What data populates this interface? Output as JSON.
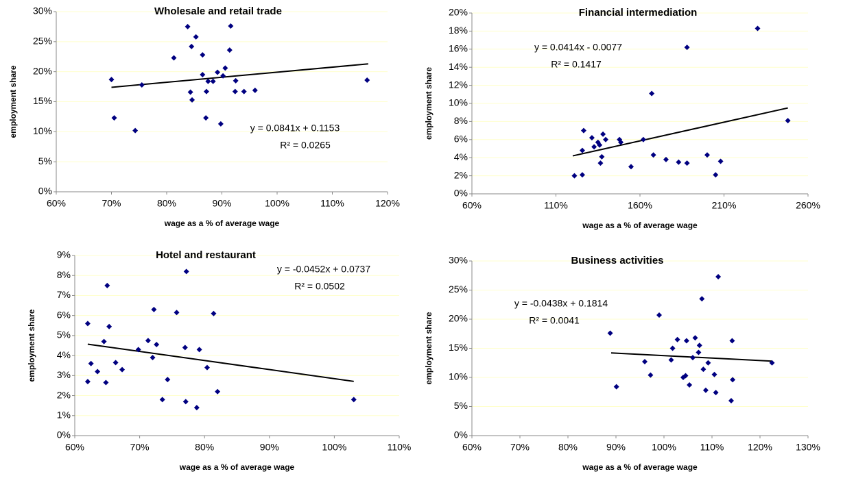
{
  "chart_data": [
    {
      "type": "scatter",
      "title": "Wholesale and retail trade",
      "x_label": "wage as a % of average wage",
      "y_label": "employment share",
      "x": [
        70,
        70.5,
        74.3,
        75.5,
        81.3,
        83.8,
        84.5,
        84.3,
        84.6,
        85.3,
        86.5,
        86.5,
        87.2,
        87.1,
        87.5,
        88.4,
        89.2,
        89.8,
        90.2,
        90.6,
        91.4,
        91.6,
        92.4,
        92.5,
        94,
        96,
        116.3
      ],
      "values": [
        18.7,
        12.3,
        10.2,
        17.8,
        22.3,
        27.5,
        24.2,
        16.6,
        15.3,
        25.8,
        22.8,
        19.5,
        16.7,
        12.3,
        18.4,
        18.4,
        19.9,
        11.3,
        19.3,
        20.6,
        23.6,
        27.6,
        16.7,
        18.5,
        16.7,
        16.9,
        18.6
      ],
      "color": "#000080",
      "marker": "diamond",
      "trendline": {
        "x": [
          70,
          116.5
        ],
        "values": [
          17.4,
          21.3
        ],
        "color": "#000000"
      },
      "equation": "y = 0.0841x + 0.1153",
      "r_squared": "R² = 0.0265",
      "xlim": [
        60,
        120
      ],
      "ylim": [
        0,
        30
      ],
      "grid": true,
      "grid_color": "#ffffcc",
      "xticks": [
        {
          "value": 60,
          "label": "60%"
        },
        {
          "value": 70,
          "label": "70%"
        },
        {
          "value": 80,
          "label": "80%"
        },
        {
          "value": 90,
          "label": "90%"
        },
        {
          "value": 100,
          "label": "100%"
        },
        {
          "value": 110,
          "label": "110%"
        },
        {
          "value": 120,
          "label": "120%"
        }
      ],
      "yticks": [
        {
          "value": 0,
          "label": "0%"
        },
        {
          "value": 5,
          "label": "5%"
        },
        {
          "value": 10,
          "label": "10%"
        },
        {
          "value": 15,
          "label": "15%"
        },
        {
          "value": 20,
          "label": "20%"
        },
        {
          "value": 25,
          "label": "25%"
        },
        {
          "value": 30,
          "label": "30%"
        }
      ]
    },
    {
      "type": "scatter",
      "title": "Financial intermediation",
      "x_label": "wage as a % of average wage",
      "y_label": "employment share",
      "x": [
        121,
        125.7,
        125.7,
        126.5,
        131.4,
        132.7,
        135,
        136,
        136.5,
        137.3,
        138,
        139.6,
        147.8,
        148.6,
        154.7,
        162,
        167,
        168,
        175.5,
        183,
        188,
        188,
        200,
        205,
        208,
        230,
        248
      ],
      "values": [
        2.0,
        2.1,
        4.8,
        7.0,
        6.2,
        5.2,
        5.7,
        5.4,
        3.4,
        4.1,
        6.6,
        6.0,
        6.0,
        5.7,
        3.0,
        6.0,
        11.1,
        4.3,
        3.8,
        3.5,
        16.2,
        3.4,
        4.3,
        2.1,
        3.6,
        18.3,
        8.1
      ],
      "color": "#000080",
      "marker": "diamond",
      "trendline": {
        "x": [
          120,
          248
        ],
        "values": [
          4.2,
          9.5
        ],
        "color": "#000000"
      },
      "equation": "y = 0.0414x - 0.0077",
      "r_squared": "R² = 0.1417",
      "xlim": [
        60,
        260
      ],
      "ylim": [
        0,
        20
      ],
      "grid": true,
      "grid_color": "#ffffcc",
      "xticks": [
        {
          "value": 60,
          "label": "60%"
        },
        {
          "value": 110,
          "label": "110%"
        },
        {
          "value": 160,
          "label": "160%"
        },
        {
          "value": 210,
          "label": "210%"
        },
        {
          "value": 260,
          "label": "260%"
        }
      ],
      "yticks": [
        {
          "value": 0,
          "label": "0%"
        },
        {
          "value": 2,
          "label": "2%"
        },
        {
          "value": 4,
          "label": "4%"
        },
        {
          "value": 6,
          "label": "6%"
        },
        {
          "value": 8,
          "label": "8%"
        },
        {
          "value": 10,
          "label": "10%"
        },
        {
          "value": 12,
          "label": "12%"
        },
        {
          "value": 14,
          "label": "14%"
        },
        {
          "value": 16,
          "label": "16%"
        },
        {
          "value": 18,
          "label": "18%"
        },
        {
          "value": 20,
          "label": "20%"
        }
      ]
    },
    {
      "type": "scatter",
      "title": "Hotel and restaurant",
      "x_label": "wage as a % of average wage",
      "y_label": "employment share",
      "x": [
        62,
        62.5,
        62,
        63.5,
        64.5,
        64.8,
        65,
        65.3,
        66.3,
        67.3,
        69.8,
        71.3,
        72,
        72.2,
        72.6,
        73.5,
        74.3,
        75.7,
        77,
        77.2,
        77.1,
        78.8,
        79.2,
        80.4,
        81.4,
        82,
        103
      ],
      "values": [
        5.6,
        3.6,
        2.7,
        3.2,
        4.7,
        2.65,
        7.5,
        5.45,
        3.65,
        3.3,
        4.3,
        4.75,
        3.9,
        6.3,
        4.55,
        1.8,
        2.8,
        6.15,
        4.4,
        8.2,
        1.7,
        1.4,
        4.3,
        3.4,
        6.1,
        2.2,
        1.8
      ],
      "color": "#000080",
      "marker": "diamond",
      "trendline": {
        "x": [
          62,
          103
        ],
        "values": [
          4.57,
          2.71
        ],
        "color": "#000000"
      },
      "equation": "y = -0.0452x + 0.0737",
      "r_squared": "R² = 0.0502",
      "xlim": [
        60,
        110
      ],
      "ylim": [
        0,
        9
      ],
      "grid": true,
      "grid_color": "#ffffcc",
      "xticks": [
        {
          "value": 60,
          "label": "60%"
        },
        {
          "value": 70,
          "label": "70%"
        },
        {
          "value": 80,
          "label": "80%"
        },
        {
          "value": 90,
          "label": "90%"
        },
        {
          "value": 100,
          "label": "100%"
        },
        {
          "value": 110,
          "label": "110%"
        }
      ],
      "yticks": [
        {
          "value": 0,
          "label": "0%"
        },
        {
          "value": 1,
          "label": "1%"
        },
        {
          "value": 2,
          "label": "2%"
        },
        {
          "value": 3,
          "label": "3%"
        },
        {
          "value": 4,
          "label": "4%"
        },
        {
          "value": 5,
          "label": "5%"
        },
        {
          "value": 6,
          "label": "6%"
        },
        {
          "value": 7,
          "label": "7%"
        },
        {
          "value": 8,
          "label": "8%"
        },
        {
          "value": 9,
          "label": "9%"
        }
      ]
    },
    {
      "type": "scatter",
      "title": "Business activities",
      "x_label": "wage as a % of average wage",
      "y_label": "employment share",
      "x": [
        88.8,
        90.1,
        96,
        97.2,
        99,
        101.5,
        101.8,
        102.8,
        104,
        104.5,
        104.7,
        105.3,
        106,
        106.5,
        107.2,
        107.4,
        107.9,
        108.2,
        108.7,
        109.2,
        110.5,
        110.8,
        111.3,
        114.2,
        114.3,
        114,
        122.5
      ],
      "values": [
        17.6,
        8.4,
        12.7,
        10.4,
        20.7,
        13,
        15,
        16.5,
        10,
        10.3,
        16.3,
        8.7,
        13.4,
        16.8,
        14.3,
        15.5,
        23.5,
        11.4,
        7.8,
        12.5,
        10.5,
        7.4,
        27.3,
        16.3,
        9.6,
        6,
        12.5
      ],
      "color": "#000080",
      "marker": "diamond",
      "trendline": {
        "x": [
          89,
          122.5
        ],
        "values": [
          14.2,
          12.8
        ],
        "color": "#000000"
      },
      "equation": "y = -0.0438x + 0.1814",
      "r_squared": "R² = 0.0041",
      "xlim": [
        60,
        130
      ],
      "ylim": [
        0,
        30
      ],
      "grid": true,
      "grid_color": "#ffffcc",
      "xticks": [
        {
          "value": 60,
          "label": "60%"
        },
        {
          "value": 70,
          "label": "70%"
        },
        {
          "value": 80,
          "label": "80%"
        },
        {
          "value": 90,
          "label": "90%"
        },
        {
          "value": 100,
          "label": "100%"
        },
        {
          "value": 110,
          "label": "110%"
        },
        {
          "value": 120,
          "label": "120%"
        },
        {
          "value": 130,
          "label": "130%"
        }
      ],
      "yticks": [
        {
          "value": 0,
          "label": "0%"
        },
        {
          "value": 5,
          "label": "5%"
        },
        {
          "value": 10,
          "label": "10%"
        },
        {
          "value": 15,
          "label": "15%"
        },
        {
          "value": 20,
          "label": "20%"
        },
        {
          "value": 25,
          "label": "25%"
        },
        {
          "value": 30,
          "label": "30%"
        }
      ]
    }
  ]
}
